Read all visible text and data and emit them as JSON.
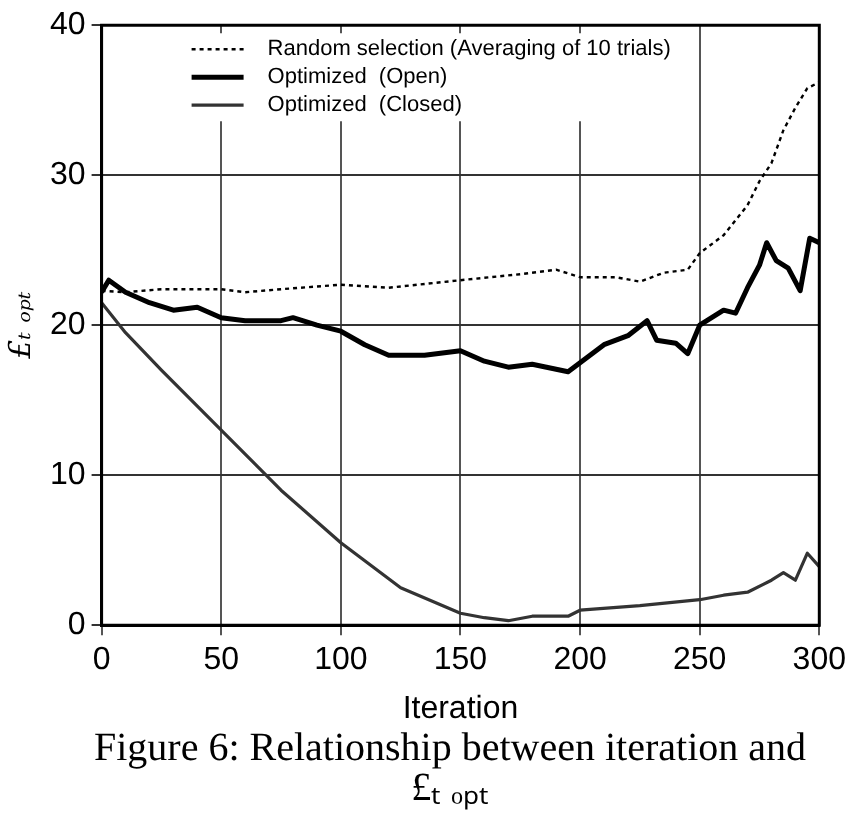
{
  "chart_data": {
    "type": "line",
    "xlabel": "Iteration",
    "ylabel": "£ₜ ₒₚₜ",
    "xlim": [
      0,
      300
    ],
    "xticks": [
      0,
      50,
      100,
      150,
      200,
      250,
      300
    ],
    "ylim": [
      0,
      40
    ],
    "yticks": [
      0,
      10,
      20,
      30,
      40
    ],
    "grid": true,
    "legend": "top left",
    "marker": "none",
    "annotations": [
      "Figure 6: Relationship between iteration and £ₜ ₒₚₜ"
    ],
    "series": [
      {
        "name": "Random selection (Averaging of 10 trials)",
        "color": "#000000",
        "line_style": "dotted",
        "x": [
          0,
          10,
          25,
          50,
          60,
          75,
          100,
          120,
          150,
          175,
          190,
          200,
          215,
          225,
          235,
          245,
          250,
          260,
          270,
          275,
          280,
          285,
          290,
          295,
          300
        ],
        "values": [
          22.3,
          22.2,
          22.4,
          22.4,
          22.2,
          22.4,
          22.7,
          22.5,
          23.0,
          23.4,
          23.7,
          23.2,
          23.2,
          22.9,
          23.5,
          23.7,
          24.8,
          26.0,
          28.0,
          29.6,
          30.8,
          33.0,
          34.5,
          35.8,
          36.2
        ]
      },
      {
        "name": "Optimized  (Open)",
        "color": "#000000",
        "line_style": "solid",
        "x": [
          0,
          3,
          10,
          20,
          30,
          40,
          50,
          60,
          75,
          80,
          90,
          100,
          110,
          120,
          135,
          150,
          160,
          170,
          180,
          195,
          200,
          210,
          220,
          228,
          232,
          240,
          245,
          250,
          260,
          265,
          270,
          275,
          278,
          282,
          287,
          292,
          296,
          300
        ],
        "values": [
          22.2,
          23.0,
          22.2,
          21.5,
          21.0,
          21.2,
          20.5,
          20.3,
          20.3,
          20.5,
          20.0,
          19.6,
          18.7,
          18.0,
          18.0,
          18.3,
          17.6,
          17.2,
          17.4,
          16.9,
          17.5,
          18.7,
          19.3,
          20.3,
          19.0,
          18.8,
          18.1,
          20.0,
          21.0,
          20.8,
          22.5,
          24.0,
          25.5,
          24.3,
          23.8,
          22.3,
          25.8,
          25.5
        ]
      },
      {
        "name": "Optimized  (Closed)",
        "color": "#333333",
        "line_style": "solid",
        "x": [
          0,
          10,
          25,
          50,
          75,
          100,
          125,
          150,
          160,
          170,
          180,
          195,
          200,
          225,
          250,
          260,
          270,
          280,
          285,
          290,
          295,
          300
        ],
        "values": [
          21.5,
          19.5,
          17.0,
          13.0,
          9.0,
          5.5,
          2.5,
          0.8,
          0.5,
          0.3,
          0.6,
          0.6,
          1.0,
          1.3,
          1.7,
          2.0,
          2.2,
          3.0,
          3.5,
          3.0,
          4.8,
          3.9
        ]
      }
    ]
  }
}
